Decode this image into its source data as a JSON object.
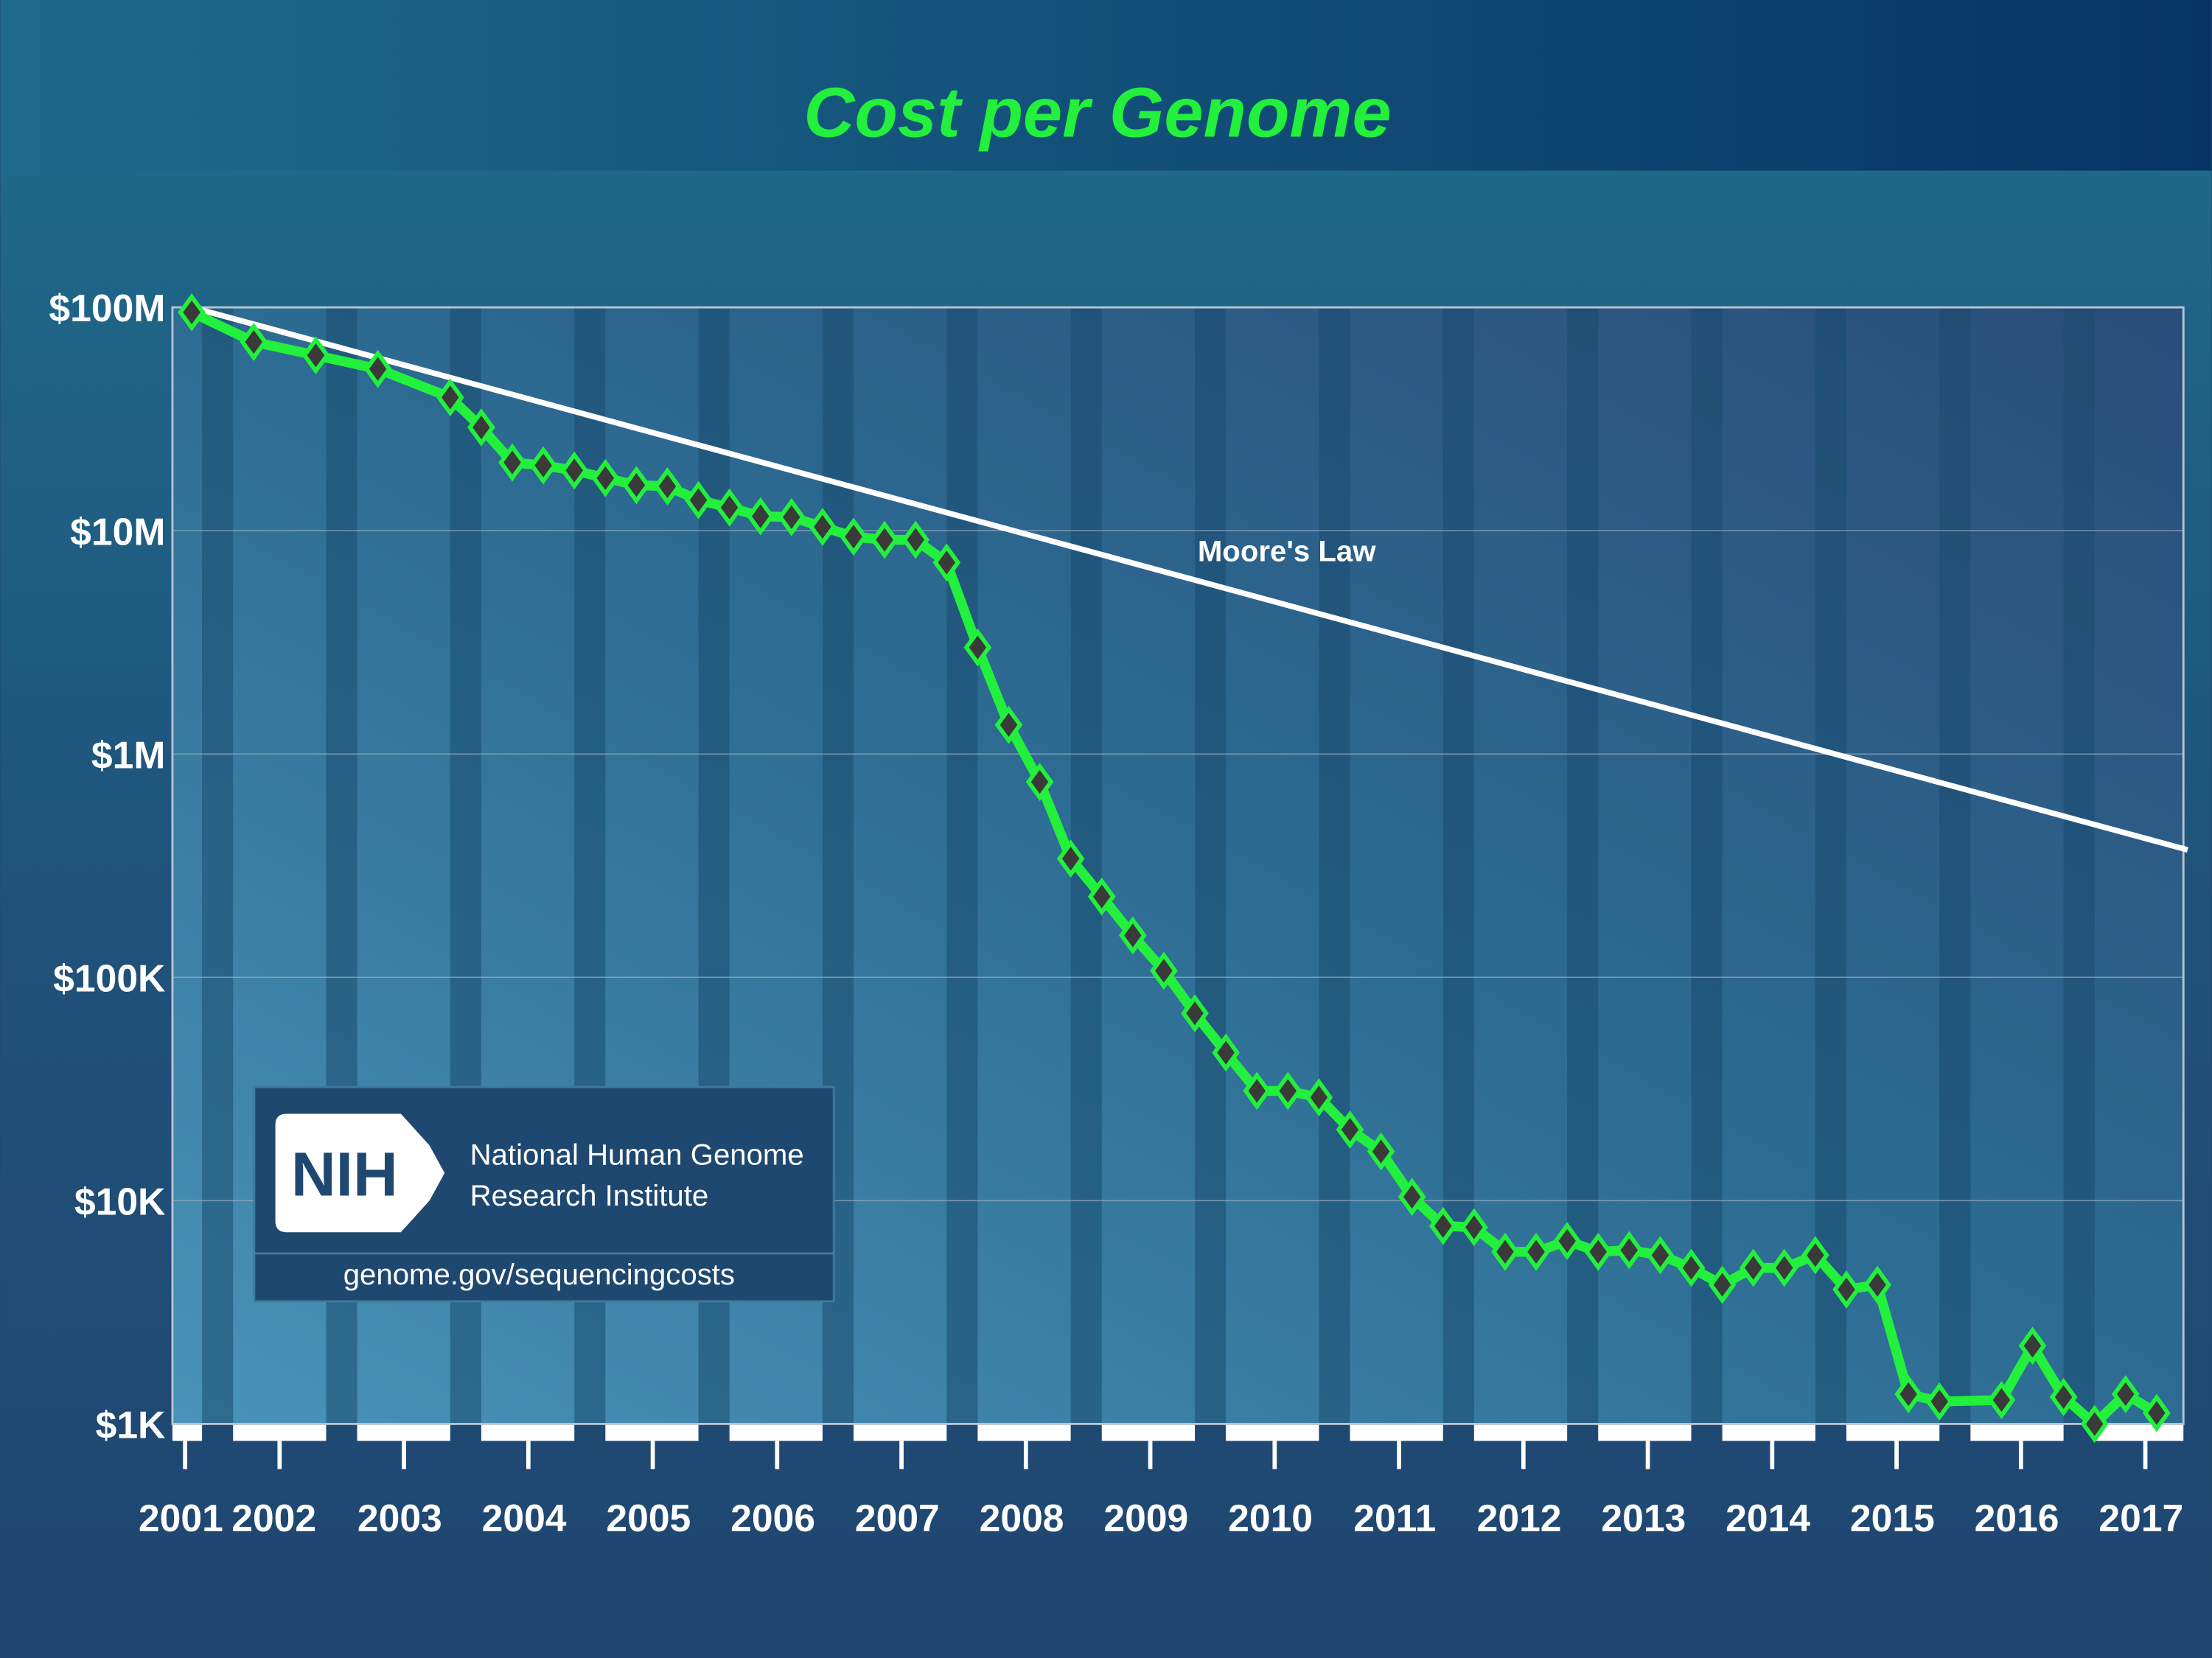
{
  "chart_data": {
    "type": "line",
    "title": "Cost per Genome",
    "xlabel": "",
    "ylabel": "",
    "yscale": "log",
    "ylim": [
      1000,
      100000000
    ],
    "yticks": [
      {
        "value": 100000000,
        "label": "$100M"
      },
      {
        "value": 10000000,
        "label": "$10M"
      },
      {
        "value": 1000000,
        "label": "$1M"
      },
      {
        "value": 100000,
        "label": "$100K"
      },
      {
        "value": 10000,
        "label": "$10K"
      },
      {
        "value": 1000,
        "label": "$1K"
      }
    ],
    "xticks": [
      "2001",
      "2002",
      "2003",
      "2004",
      "2005",
      "2006",
      "2007",
      "2008",
      "2009",
      "2010",
      "2011",
      "2012",
      "2013",
      "2014",
      "2015",
      "2016",
      "2017"
    ],
    "grid": true,
    "series": [
      {
        "color": "#22f03c",
        "marker_color": "#3a3a3a",
        "x": [
          "2001-04",
          "2001-10",
          "2002-04",
          "2002-10",
          "2003-05",
          "2003-08",
          "2003-11",
          "2004-02",
          "2004-05",
          "2004-08",
          "2004-11",
          "2005-02",
          "2005-05",
          "2005-08",
          "2005-11",
          "2006-02",
          "2006-05",
          "2006-08",
          "2006-11",
          "2007-02",
          "2007-05",
          "2007-08",
          "2007-11",
          "2008-02",
          "2008-05",
          "2008-08",
          "2008-11",
          "2009-02",
          "2009-05",
          "2009-08",
          "2009-11",
          "2010-02",
          "2010-05",
          "2010-08",
          "2010-11",
          "2011-02",
          "2011-05",
          "2011-08",
          "2011-11",
          "2012-02",
          "2012-05",
          "2012-08",
          "2012-11",
          "2013-02",
          "2013-05",
          "2013-08",
          "2013-11",
          "2014-02",
          "2014-05",
          "2014-08",
          "2014-11",
          "2015-02",
          "2015-05",
          "2015-11",
          "2016-02",
          "2016-05",
          "2016-08",
          "2016-11",
          "2017-02"
        ],
        "y": [
          95000000,
          70000000,
          61000000,
          53000000,
          39500000,
          29000000,
          20200000,
          19600000,
          18600000,
          17200000,
          16000000,
          15800000,
          13700000,
          12700000,
          11600000,
          11500000,
          10400000,
          9400000,
          9100000,
          9100000,
          7200000,
          3000000,
          1350000,
          750000,
          340000,
          230000,
          154000,
          107000,
          69000,
          46000,
          31000,
          31000,
          29000,
          20800,
          16600,
          10400,
          7700,
          7600,
          5900,
          5900,
          6600,
          5900,
          6000,
          5700,
          5000,
          4200,
          5000,
          5000,
          5700,
          4000,
          4200,
          1360,
          1260,
          1280,
          2240,
          1320,
          1000,
          1360,
          1120
        ]
      },
      {
        "name": "Moore's Law",
        "color": "#ffffff",
        "x": [
          "2001-04",
          "2017-05"
        ],
        "y": [
          100000000,
          372000
        ]
      }
    ]
  },
  "logo": {
    "mark": "NIH",
    "line1": "National Human Genome",
    "line2": "Research Institute",
    "url": "genome.gov/sequencingcosts"
  },
  "colors": {
    "title": "#22f03c",
    "series": "#22f03c",
    "moore": "#ffffff",
    "logo_bg": "#1f4870"
  }
}
